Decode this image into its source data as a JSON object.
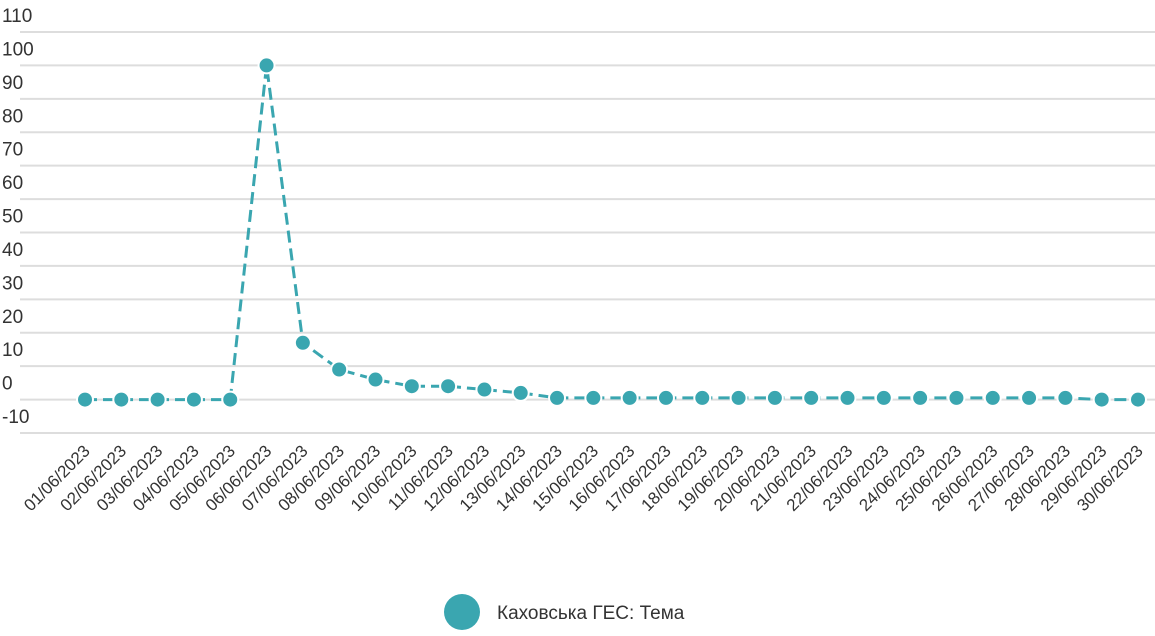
{
  "chart_data": {
    "type": "line",
    "categories": [
      "01/06/2023",
      "02/06/2023",
      "03/06/2023",
      "04/06/2023",
      "05/06/2023",
      "06/06/2023",
      "07/06/2023",
      "08/06/2023",
      "09/06/2023",
      "10/06/2023",
      "11/06/2023",
      "12/06/2023",
      "13/06/2023",
      "14/06/2023",
      "15/06/2023",
      "16/06/2023",
      "17/06/2023",
      "18/06/2023",
      "19/06/2023",
      "20/06/2023",
      "21/06/2023",
      "22/06/2023",
      "23/06/2023",
      "24/06/2023",
      "25/06/2023",
      "26/06/2023",
      "27/06/2023",
      "28/06/2023",
      "29/06/2023",
      "30/06/2023"
    ],
    "series": [
      {
        "name": "Каховська ГЕС: Тема",
        "color": "#3aa6b0",
        "values": [
          0,
          0,
          0,
          0,
          0,
          100,
          17,
          9,
          6,
          4,
          4,
          3,
          2,
          0.5,
          0.5,
          0.5,
          0.5,
          0.5,
          0.5,
          0.5,
          0.5,
          0.5,
          0.5,
          0.5,
          0.5,
          0.5,
          0.5,
          0.5,
          0,
          0
        ]
      }
    ],
    "ylim": [
      -10,
      110
    ],
    "yticks": [
      -10,
      0,
      10,
      20,
      30,
      40,
      50,
      60,
      70,
      80,
      90,
      100,
      110
    ],
    "grid": true,
    "legend": "bottom"
  }
}
